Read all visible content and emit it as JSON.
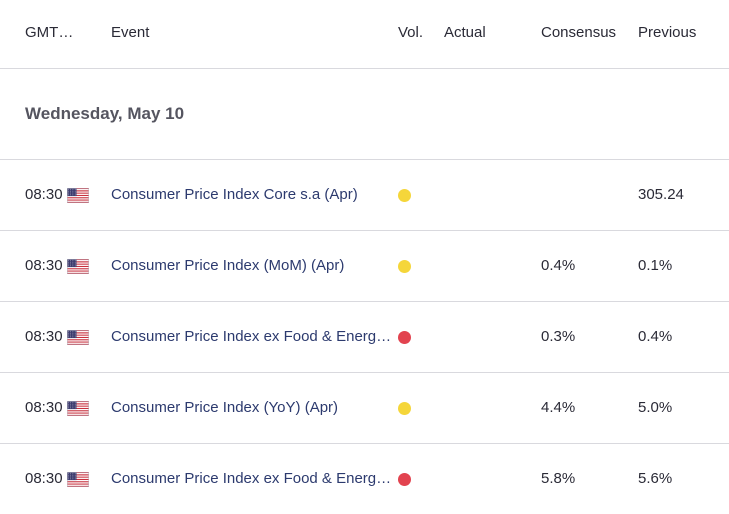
{
  "header": {
    "time_col": "GMT…",
    "event_col": "Event",
    "vol_col": "Vol.",
    "actual_col": "Actual",
    "consensus_col": "Consensus",
    "previous_col": "Previous"
  },
  "date_group": "Wednesday, May 10",
  "colors": {
    "vol_medium": "#f5d63a",
    "vol_high": "#e2434f",
    "event_text": "#2c3a6e"
  },
  "rows": [
    {
      "time": "08:30",
      "flag": "us-flag-icon",
      "event": "Consumer Price Index Core s.a (Apr)",
      "vol": "medium",
      "actual": "",
      "consensus": "",
      "previous": "305.24"
    },
    {
      "time": "08:30",
      "flag": "us-flag-icon",
      "event": "Consumer Price Index (MoM) (Apr)",
      "vol": "medium",
      "actual": "",
      "consensus": "0.4%",
      "previous": "0.1%"
    },
    {
      "time": "08:30",
      "flag": "us-flag-icon",
      "event": "Consumer Price Index ex Food & Energy …",
      "vol": "high",
      "actual": "",
      "consensus": "0.3%",
      "previous": "0.4%"
    },
    {
      "time": "08:30",
      "flag": "us-flag-icon",
      "event": "Consumer Price Index (YoY) (Apr)",
      "vol": "medium",
      "actual": "",
      "consensus": "4.4%",
      "previous": "5.0%"
    },
    {
      "time": "08:30",
      "flag": "us-flag-icon",
      "event": "Consumer Price Index ex Food & Energy …",
      "vol": "high",
      "actual": "",
      "consensus": "5.8%",
      "previous": "5.6%"
    }
  ]
}
